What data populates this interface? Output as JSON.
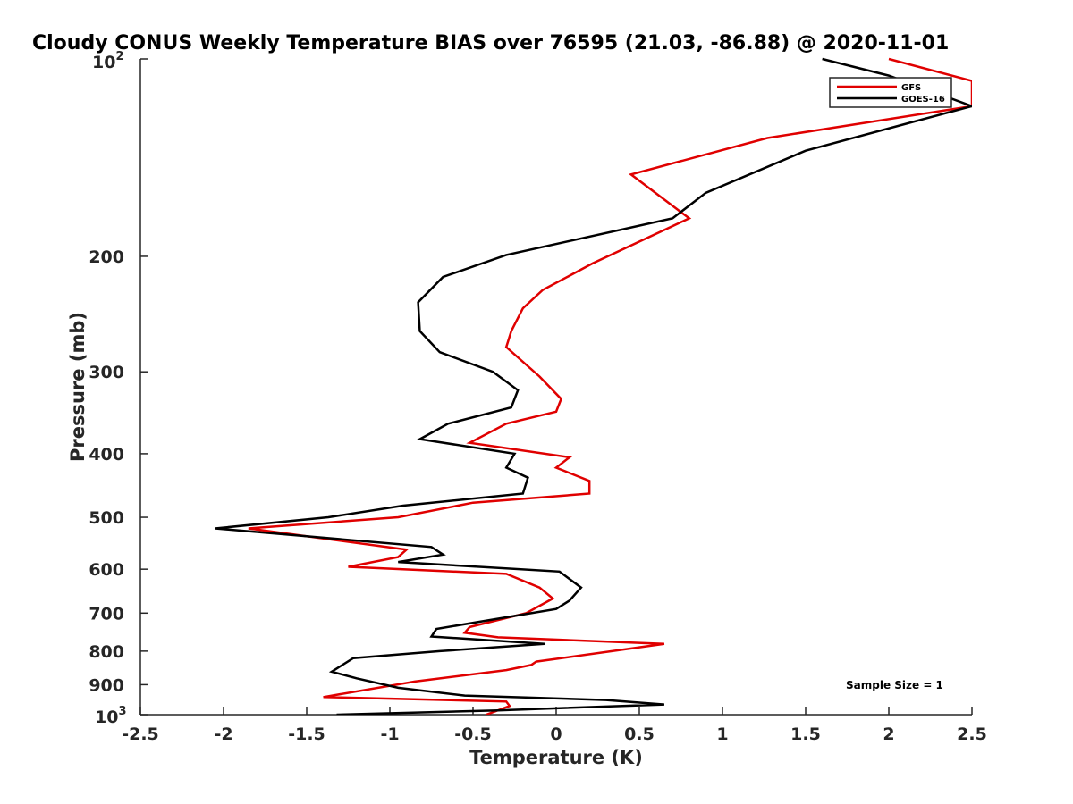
{
  "chart_data": {
    "type": "line",
    "title": "Cloudy CONUS Weekly Temperature BIAS over 76595 (21.03, -86.88) @ 2020-11-01",
    "xlabel": "Temperature (K)",
    "ylabel": "Pressure (mb)",
    "xlim": [
      -2.5,
      2.5
    ],
    "ylim": [
      100,
      1000
    ],
    "yscale": "log",
    "y_reversed": true,
    "x_ticks": [
      "-2.5",
      "-2",
      "-1.5",
      "-1",
      "-0.5",
      "0",
      "0.5",
      "1",
      "1.5",
      "2",
      "2.5"
    ],
    "y_ticks_plain": [
      "200",
      "300",
      "400",
      "500",
      "600",
      "700",
      "800",
      "900"
    ],
    "y_tick_top": {
      "base": "10",
      "exp": "2"
    },
    "y_tick_bottom": {
      "base": "10",
      "exp": "3"
    },
    "legend_position": "top-right",
    "annotation": "Sample Size = 1",
    "series": [
      {
        "name": "GFS",
        "color": "#e00000",
        "points": [
          [
            2.0,
            100
          ],
          [
            2.5,
            108
          ],
          [
            2.5,
            118
          ],
          [
            1.27,
            132
          ],
          [
            0.45,
            150
          ],
          [
            0.8,
            175
          ],
          [
            0.22,
            205
          ],
          [
            -0.08,
            225
          ],
          [
            -0.2,
            240
          ],
          [
            -0.27,
            260
          ],
          [
            -0.3,
            275
          ],
          [
            -0.1,
            305
          ],
          [
            0.03,
            330
          ],
          [
            0.0,
            345
          ],
          [
            -0.3,
            360
          ],
          [
            -0.52,
            385
          ],
          [
            0.08,
            405
          ],
          [
            0.0,
            420
          ],
          [
            0.2,
            440
          ],
          [
            0.2,
            460
          ],
          [
            -0.5,
            475
          ],
          [
            -0.95,
            500
          ],
          [
            -1.85,
            520
          ],
          [
            -0.9,
            560
          ],
          [
            -0.95,
            575
          ],
          [
            -1.25,
            595
          ],
          [
            -0.3,
            610
          ],
          [
            -0.1,
            640
          ],
          [
            -0.02,
            665
          ],
          [
            -0.18,
            700
          ],
          [
            -0.52,
            735
          ],
          [
            -0.55,
            750
          ],
          [
            -0.35,
            762
          ],
          [
            0.65,
            780
          ],
          [
            -0.12,
            830
          ],
          [
            -0.15,
            840
          ],
          [
            -0.3,
            855
          ],
          [
            -0.85,
            890
          ],
          [
            -1.4,
            940
          ],
          [
            -0.3,
            955
          ],
          [
            -0.28,
            970
          ],
          [
            -0.42,
            1000
          ]
        ]
      },
      {
        "name": "GOES-16",
        "color": "#000000",
        "points": [
          [
            1.6,
            100
          ],
          [
            2.0,
            106
          ],
          [
            2.5,
            118
          ],
          [
            1.5,
            138
          ],
          [
            0.9,
            160
          ],
          [
            0.7,
            175
          ],
          [
            -0.3,
            199
          ],
          [
            -0.68,
            215
          ],
          [
            -0.83,
            235
          ],
          [
            -0.82,
            260
          ],
          [
            -0.7,
            280
          ],
          [
            -0.38,
            300
          ],
          [
            -0.23,
            320
          ],
          [
            -0.27,
            340
          ],
          [
            -0.65,
            360
          ],
          [
            -0.82,
            380
          ],
          [
            -0.25,
            400
          ],
          [
            -0.3,
            420
          ],
          [
            -0.17,
            435
          ],
          [
            -0.2,
            460
          ],
          [
            -0.92,
            480
          ],
          [
            -1.37,
            500
          ],
          [
            -2.05,
            520
          ],
          [
            -0.75,
            555
          ],
          [
            -0.68,
            570
          ],
          [
            -0.95,
            585
          ],
          [
            0.02,
            605
          ],
          [
            0.15,
            640
          ],
          [
            0.08,
            670
          ],
          [
            0.0,
            690
          ],
          [
            -0.72,
            740
          ],
          [
            -0.75,
            760
          ],
          [
            -0.07,
            780
          ],
          [
            -0.7,
            800
          ],
          [
            -1.22,
            820
          ],
          [
            -1.35,
            860
          ],
          [
            -1.2,
            880
          ],
          [
            -0.95,
            910
          ],
          [
            -0.55,
            935
          ],
          [
            0.3,
            950
          ],
          [
            0.65,
            965
          ],
          [
            -0.35,
            985
          ],
          [
            -1.32,
            1000
          ]
        ]
      }
    ]
  }
}
